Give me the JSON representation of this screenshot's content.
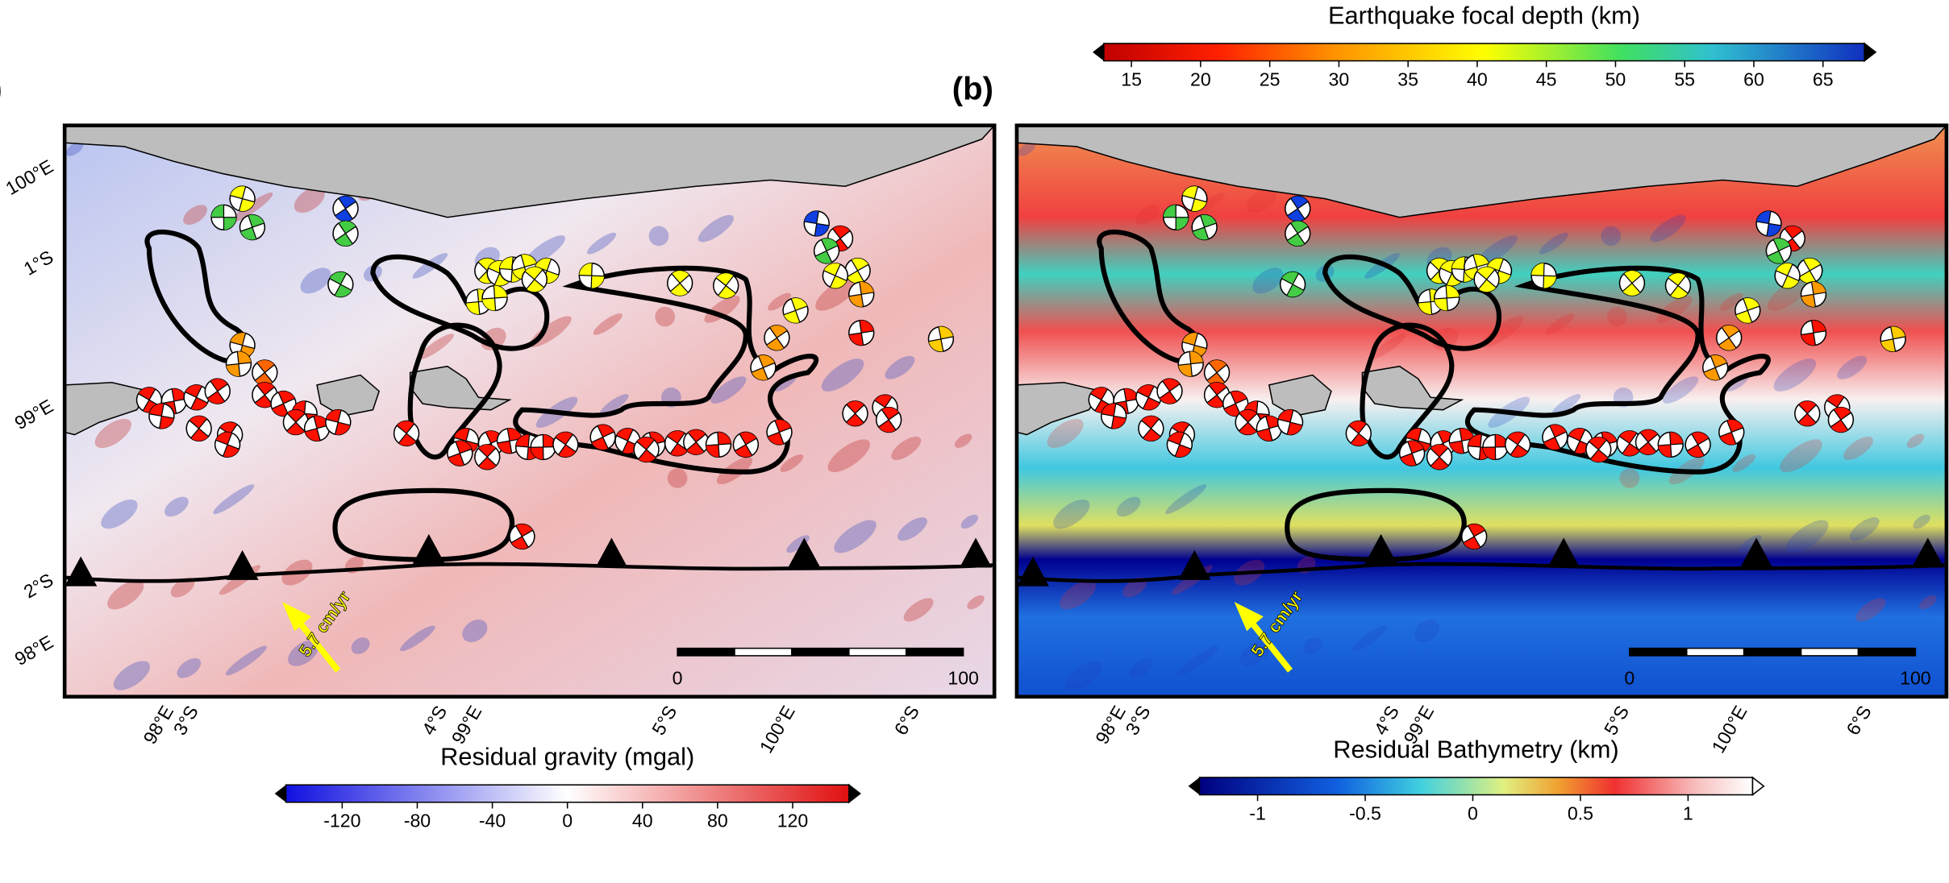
{
  "panels": [
    {
      "label": "(a)",
      "left_labels": [
        "100°E",
        "1°S",
        "99°E",
        "2°S",
        "98°E"
      ],
      "bottom_labels": [
        "98°E",
        "3°S",
        "4°S",
        "99°E",
        "5°S",
        "100°E",
        "6°S"
      ],
      "scale_bar": [
        0,
        100
      ],
      "velocity": "5.7 cm/yr"
    },
    {
      "label": "(b)",
      "bottom_labels": [
        "98°E",
        "3°S",
        "4°S",
        "99°E",
        "5°S",
        "100°E",
        "6°S"
      ],
      "scale_bar": [
        0,
        100
      ],
      "velocity": "5.7 cm/yr"
    }
  ],
  "colorbars": [
    {
      "title": "Earthquake focal depth (km)",
      "range": [
        13,
        68
      ],
      "ticks": [
        15,
        20,
        25,
        30,
        35,
        40,
        45,
        50,
        55,
        60,
        65
      ]
    },
    {
      "title": "Residual gravity (mgal)",
      "range": [
        -150,
        150
      ],
      "ticks": [
        -120,
        -80,
        -40,
        0,
        40,
        80,
        120
      ]
    },
    {
      "title": "Residual Bathymetry (km)",
      "range": [
        -1.27,
        1.3
      ],
      "ticks": [
        -1,
        -0.5,
        0,
        0.5,
        1
      ]
    }
  ]
}
